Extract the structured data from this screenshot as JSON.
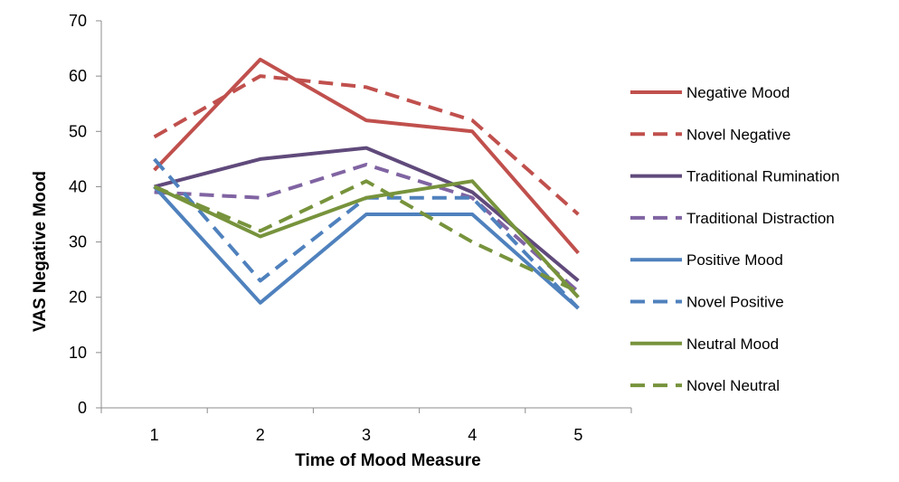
{
  "chart_data": {
    "type": "line",
    "title": "",
    "xlabel": "Time of Mood Measure",
    "ylabel": "VAS Negative Mood",
    "x": [
      1,
      2,
      3,
      4,
      5
    ],
    "x_tick_labels": [
      "1",
      "2",
      "3",
      "4",
      "5"
    ],
    "ylim": [
      0,
      70
    ],
    "y_ticks": [
      0,
      10,
      20,
      30,
      40,
      50,
      60,
      70
    ],
    "y_tick_labels": [
      "0",
      "10",
      "20",
      "30",
      "40",
      "50",
      "60",
      "70"
    ],
    "grid": false,
    "legend_position": "right",
    "series": [
      {
        "name": "Negative Mood",
        "values": [
          43,
          63,
          52,
          50,
          28
        ],
        "color": "#c0504d",
        "dash": "solid"
      },
      {
        "name": "Novel Negative",
        "values": [
          49,
          60,
          58,
          52,
          35
        ],
        "color": "#c0504d",
        "dash": "dashed"
      },
      {
        "name": "Traditional Rumination",
        "values": [
          40,
          45,
          47,
          39,
          23
        ],
        "color": "#604a7b",
        "dash": "solid"
      },
      {
        "name": "Traditional Distraction",
        "values": [
          39,
          38,
          44,
          38,
          21
        ],
        "color": "#8064a2",
        "dash": "dashed"
      },
      {
        "name": "Positive Mood",
        "values": [
          40,
          19,
          35,
          35,
          18
        ],
        "color": "#4f81bd",
        "dash": "solid"
      },
      {
        "name": "Novel Positive",
        "values": [
          45,
          23,
          38,
          38,
          18
        ],
        "color": "#4f81bd",
        "dash": "dashed"
      },
      {
        "name": "Neutral Mood",
        "values": [
          40,
          31,
          38,
          41,
          20
        ],
        "color": "#77933c",
        "dash": "solid"
      },
      {
        "name": "Novel Neutral",
        "values": [
          40,
          32,
          41,
          30,
          21
        ],
        "color": "#77933c",
        "dash": "dashed"
      }
    ]
  }
}
